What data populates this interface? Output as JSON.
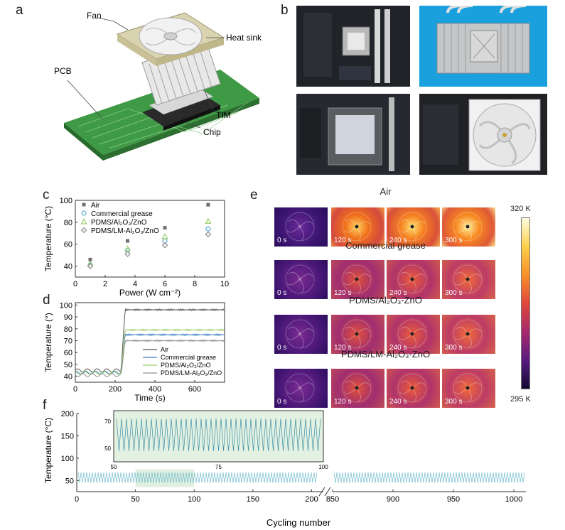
{
  "panels": {
    "a": "a",
    "b": "b",
    "c": "c",
    "d": "d",
    "e": "e",
    "f": "f"
  },
  "schematic": {
    "labels": {
      "fan": "Fan",
      "heat_sink": "Heat sink",
      "pcb": "PCB",
      "tim": "TIM",
      "chip": "Chip"
    }
  },
  "colorbar": {
    "max_label": "320 K",
    "min_label": "295 K",
    "colors": [
      "#fffde0",
      "#fcd04a",
      "#f8902a",
      "#e0483a",
      "#a82a6e",
      "#5a1a80",
      "#120a30"
    ]
  },
  "thermal": {
    "rows": [
      {
        "title": "Air",
        "times": [
          "0 s",
          "120 s",
          "240 s",
          "300 s"
        ]
      },
      {
        "title": "Commercial grease",
        "times": [
          "0 s",
          "120 s",
          "240 s",
          "300 s"
        ]
      },
      {
        "title": "PDMS/Al₂O₃-ZnO",
        "times": [
          "0 s",
          "120 s",
          "240 s",
          "300 s"
        ]
      },
      {
        "title": "PDMS/LM-Al₂O₃-ZnO",
        "times": [
          "0 s",
          "120 s",
          "240 s",
          "300 s"
        ]
      }
    ]
  },
  "chart_data": [
    {
      "id": "c",
      "type": "scatter",
      "xlabel": "Power (W cm⁻²)",
      "ylabel": "Temperature (°C)",
      "xlim": [
        0,
        10
      ],
      "ylim": [
        30,
        100
      ],
      "xticks": [
        0,
        2,
        4,
        6,
        8,
        10
      ],
      "yticks": [
        40,
        60,
        80,
        100
      ],
      "x": [
        1,
        3.5,
        6,
        8.9
      ],
      "series": [
        {
          "name": "Air",
          "marker": "square",
          "color": "#707070",
          "values": [
            46,
            63,
            75,
            96
          ]
        },
        {
          "name": "Commercial grease",
          "marker": "circle",
          "color": "#5aaed0",
          "values": [
            41,
            54,
            63,
            74
          ]
        },
        {
          "name": "PDMS/Al₂O₃/ZnO",
          "marker": "triangle",
          "color": "#8ec95a",
          "values": [
            42,
            56,
            67,
            81
          ]
        },
        {
          "name": "PDMS/LM-Al₂O₃/ZnO",
          "marker": "diamond",
          "color": "#8a8a8a",
          "values": [
            40,
            51,
            59,
            69
          ]
        }
      ]
    },
    {
      "id": "d",
      "type": "line",
      "xlabel": "Time (s)",
      "ylabel": "Temperature (°)",
      "xlim": [
        0,
        750
      ],
      "ylim": [
        35,
        102
      ],
      "xticks": [
        0,
        200,
        400,
        600
      ],
      "yticks": [
        40,
        50,
        60,
        70,
        80,
        90,
        100
      ],
      "step_time": 230,
      "series": [
        {
          "name": "Air",
          "color": "#505050",
          "before": 45,
          "after": 96
        },
        {
          "name": "Commercial grease",
          "color": "#3a7fc4",
          "before": 43,
          "after": 75
        },
        {
          "name": "PDMS/Al₂O₃/ZnO",
          "color": "#9acd6a",
          "before": 43,
          "after": 79
        },
        {
          "name": "PDMS/LM-Al₂O₃/ZnO",
          "color": "#909090",
          "before": 41,
          "after": 70
        }
      ]
    },
    {
      "id": "f",
      "type": "line",
      "xlabel": "Cycling number",
      "ylabel": "Temperature (°C)",
      "ylim": [
        25,
        200
      ],
      "yticks": [
        50,
        100,
        150,
        200
      ],
      "xticks_left": [
        0,
        50,
        100,
        150,
        200
      ],
      "xticks_right": [
        850,
        900,
        950,
        1000
      ],
      "series_color": "#5fb3c9",
      "cycle_low": 45,
      "cycle_high": 68,
      "highlight_range": [
        50,
        100
      ],
      "inset": {
        "xlim": [
          50,
          100
        ],
        "xticks": [
          50,
          75,
          100
        ],
        "yticks": [
          50,
          70
        ],
        "ylim": [
          40,
          78
        ]
      }
    }
  ]
}
